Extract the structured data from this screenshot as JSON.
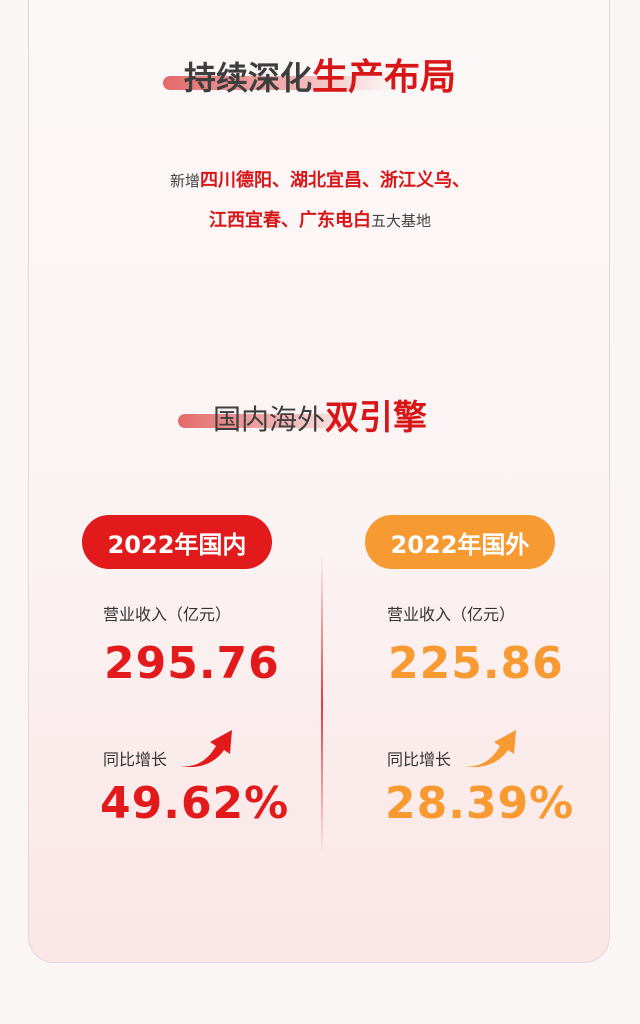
{
  "section1": {
    "title_dark": "持续深化",
    "title_red": "生产布局",
    "line1_prefix": "新增",
    "line1_red": "四川德阳、湖北宜昌、浙江义乌、",
    "line2_red": "江西宜春、广东电白",
    "line2_suffix": "五大基地"
  },
  "section2": {
    "title_dark": "国内海外",
    "title_red": "双引擎",
    "domestic": {
      "badge": "2022年国内",
      "revenue_label": "营业收入（亿元）",
      "revenue": "295.76",
      "growth_label": "同比增长",
      "growth": "49.62%",
      "color": "#e31a1c",
      "icon": "trend-up-arrow-icon"
    },
    "overseas": {
      "badge": "2022年国外",
      "revenue_label": "营业收入（亿元）",
      "revenue": "225.86",
      "growth_label": "同比增长",
      "growth": "28.39%",
      "color": "#f79a32",
      "icon": "trend-up-arrow-icon"
    }
  }
}
